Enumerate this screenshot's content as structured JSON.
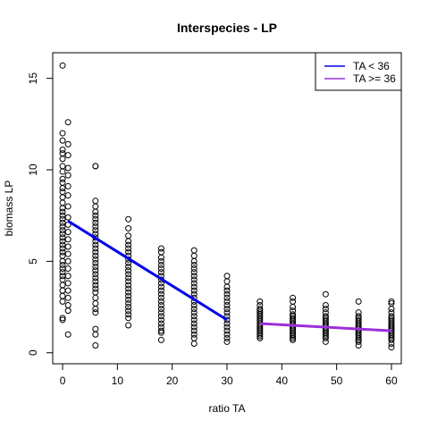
{
  "chart_data": {
    "type": "scatter",
    "title": "Interspecies - LP",
    "xlabel": "ratio TA",
    "ylabel": "biomass LP",
    "xlim": [
      -1.8,
      61.8
    ],
    "ylim": [
      -0.6,
      16.4
    ],
    "x_ticks": [
      0,
      10,
      20,
      30,
      40,
      50,
      60
    ],
    "y_ticks": [
      0,
      5,
      10,
      15
    ],
    "legend_position": "top-right",
    "colors": {
      "points": "#000000",
      "line_low": "#0000ee",
      "line_high": "#9b30d9"
    },
    "points": [
      {
        "x": 0,
        "y": [
          15.7,
          12.0,
          11.6,
          11.1,
          10.9,
          10.6,
          10.2,
          9.9,
          9.5,
          9.3,
          9.0,
          8.8,
          8.5,
          8.2,
          7.9,
          7.7,
          7.5,
          7.3,
          7.1,
          6.9,
          6.7,
          6.5,
          6.3,
          6.1,
          5.9,
          5.7,
          5.5,
          5.3,
          5.0,
          4.8,
          4.6,
          4.4,
          4.2,
          4.0,
          3.7,
          3.4,
          3.1,
          2.8,
          1.9,
          1.8
        ]
      },
      {
        "x": 1,
        "y": [
          12.6,
          11.4,
          10.8,
          10.1,
          9.7,
          9.1,
          8.6,
          8.0,
          7.4,
          7.0,
          6.6,
          6.2,
          5.8,
          5.4,
          5.0,
          4.6,
          4.2,
          3.8,
          3.4,
          3.0,
          2.6,
          2.3,
          1.0
        ]
      },
      {
        "x": 6,
        "y": [
          10.2,
          10.2,
          8.3,
          8.0,
          7.7,
          7.5,
          7.3,
          7.1,
          6.9,
          6.7,
          6.5,
          6.3,
          6.1,
          5.9,
          5.7,
          5.5,
          5.3,
          5.1,
          4.9,
          4.7,
          4.5,
          4.3,
          4.1,
          3.9,
          3.7,
          3.5,
          3.3,
          3.0,
          2.7,
          2.4,
          2.2,
          1.3,
          1.0,
          0.4
        ]
      },
      {
        "x": 12,
        "y": [
          7.3,
          6.8,
          6.4,
          6.1,
          5.9,
          5.7,
          5.5,
          5.3,
          5.1,
          4.9,
          4.7,
          4.5,
          4.3,
          4.1,
          3.9,
          3.7,
          3.5,
          3.3,
          3.1,
          2.9,
          2.7,
          2.5,
          2.3,
          2.1,
          1.9,
          1.5
        ]
      },
      {
        "x": 18,
        "y": [
          5.7,
          5.5,
          5.2,
          5.0,
          4.8,
          4.6,
          4.4,
          4.2,
          4.0,
          3.8,
          3.6,
          3.4,
          3.2,
          3.0,
          2.8,
          2.6,
          2.4,
          2.2,
          2.0,
          1.8,
          1.6,
          1.4,
          1.2,
          1.1,
          0.7
        ]
      },
      {
        "x": 24,
        "y": [
          5.6,
          5.3,
          5.0,
          4.8,
          4.6,
          4.4,
          4.2,
          4.0,
          3.8,
          3.6,
          3.4,
          3.2,
          3.0,
          2.8,
          2.6,
          2.4,
          2.2,
          2.0,
          1.8,
          1.6,
          1.4,
          1.2,
          1.0,
          0.8,
          0.5
        ]
      },
      {
        "x": 30,
        "y": [
          4.2,
          3.9,
          3.6,
          3.4,
          3.2,
          3.0,
          2.8,
          2.6,
          2.4,
          2.2,
          2.0,
          1.8,
          1.6,
          1.4,
          1.2,
          1.0,
          0.8,
          0.6
        ]
      },
      {
        "x": 36,
        "y": [
          2.8,
          2.6,
          2.4,
          2.3,
          2.2,
          2.1,
          2.0,
          1.9,
          1.8,
          1.7,
          1.6,
          1.5,
          1.4,
          1.3,
          1.2,
          1.1,
          1.0,
          0.9,
          0.8
        ]
      },
      {
        "x": 42,
        "y": [
          3.0,
          2.8,
          2.5,
          2.3,
          2.1,
          2.0,
          1.9,
          1.8,
          1.7,
          1.6,
          1.5,
          1.4,
          1.3,
          1.2,
          1.1,
          1.0,
          0.9,
          0.8,
          0.7
        ]
      },
      {
        "x": 48,
        "y": [
          3.2,
          2.6,
          2.4,
          2.2,
          2.0,
          1.9,
          1.8,
          1.7,
          1.6,
          1.5,
          1.4,
          1.3,
          1.2,
          1.1,
          1.0,
          0.9,
          0.8,
          0.6
        ]
      },
      {
        "x": 54,
        "y": [
          2.8,
          2.2,
          2.0,
          1.9,
          1.8,
          1.7,
          1.6,
          1.5,
          1.4,
          1.3,
          1.2,
          1.1,
          1.0,
          0.9,
          0.8,
          0.7,
          0.6,
          0.4
        ]
      },
      {
        "x": 60,
        "y": [
          2.8,
          2.7,
          2.4,
          2.2,
          2.0,
          1.9,
          1.8,
          1.7,
          1.6,
          1.5,
          1.4,
          1.3,
          1.2,
          1.1,
          1.0,
          0.9,
          0.8,
          0.7,
          0.5,
          0.3
        ]
      }
    ],
    "lines": [
      {
        "name": "TA < 36",
        "color": "#0000ee",
        "x": [
          1,
          30
        ],
        "y": [
          7.2,
          1.8
        ]
      },
      {
        "name": "TA >= 36",
        "color": "#9b30d9",
        "x": [
          36,
          60
        ],
        "y": [
          1.6,
          1.2
        ]
      }
    ]
  }
}
